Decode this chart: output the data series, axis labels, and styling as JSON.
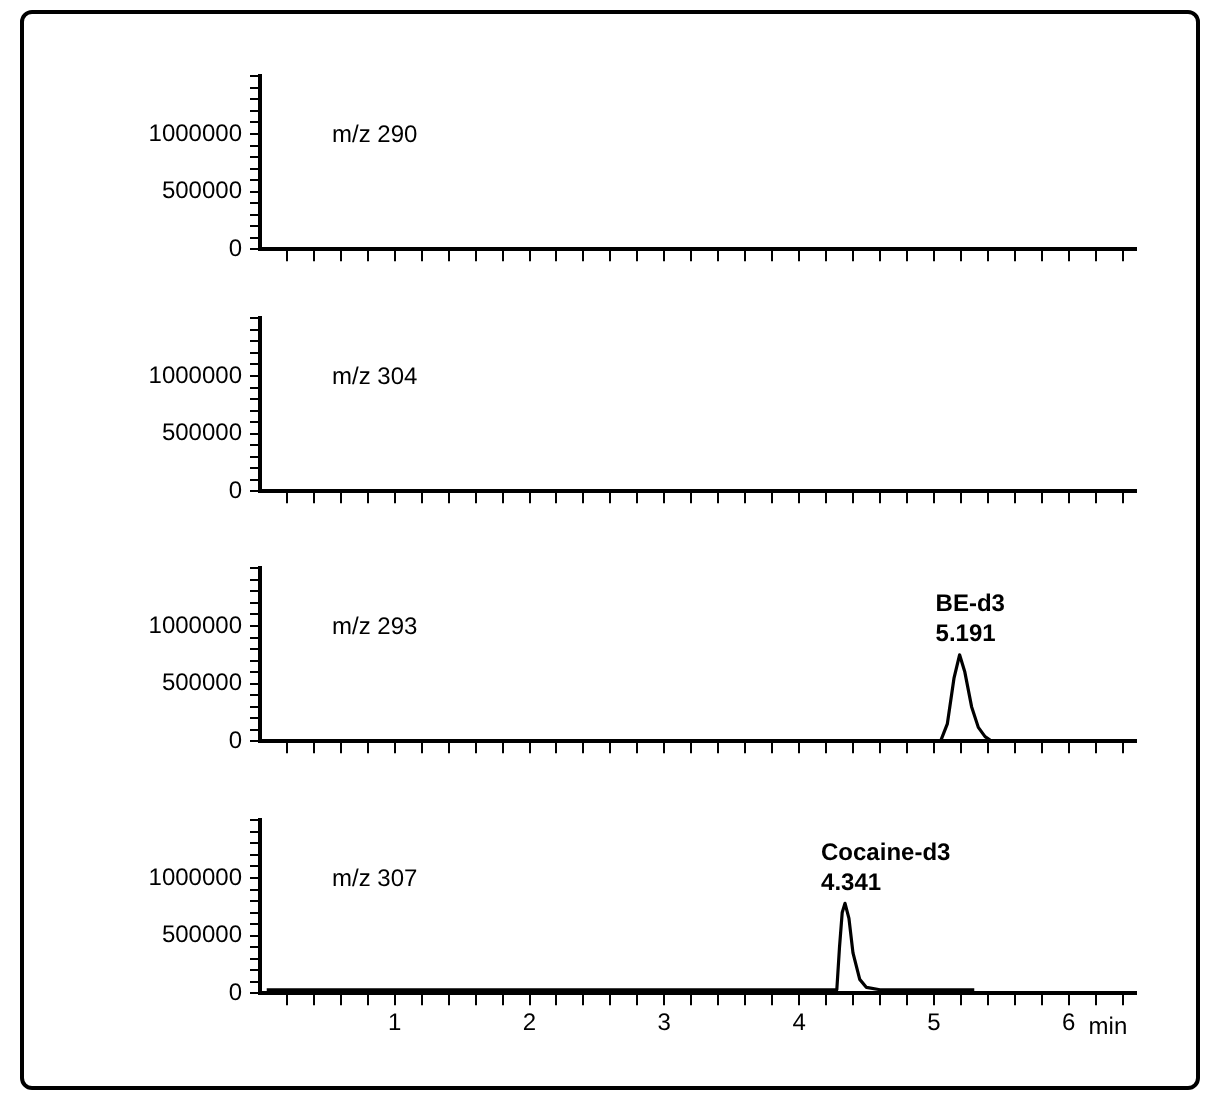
{
  "chart_data": [
    {
      "type": "line",
      "xlim": [
        0,
        6.5
      ],
      "ylim": [
        0,
        1500000
      ],
      "tick_labels": "y",
      "xticks": [
        {
          "value": 0.2,
          "label": null
        },
        {
          "value": 0.4,
          "label": null
        },
        {
          "value": 0.6,
          "label": null
        },
        {
          "value": 0.8,
          "label": null
        },
        {
          "value": 1,
          "label": null
        },
        {
          "value": 1.2,
          "label": null
        },
        {
          "value": 1.4,
          "label": null
        },
        {
          "value": 1.6,
          "label": null
        },
        {
          "value": 1.8,
          "label": null
        },
        {
          "value": 2,
          "label": null
        },
        {
          "value": 2.2,
          "label": null
        },
        {
          "value": 2.4,
          "label": null
        },
        {
          "value": 2.6,
          "label": null
        },
        {
          "value": 2.8,
          "label": null
        },
        {
          "value": 3,
          "label": null
        },
        {
          "value": 3.2,
          "label": null
        },
        {
          "value": 3.4,
          "label": null
        },
        {
          "value": 3.6,
          "label": null
        },
        {
          "value": 3.8,
          "label": null
        },
        {
          "value": 4,
          "label": null
        },
        {
          "value": 4.2,
          "label": null
        },
        {
          "value": 4.4,
          "label": null
        },
        {
          "value": 4.6,
          "label": null
        },
        {
          "value": 4.8,
          "label": null
        },
        {
          "value": 5,
          "label": null
        },
        {
          "value": 5.2,
          "label": null
        },
        {
          "value": 5.4,
          "label": null
        },
        {
          "value": 5.6,
          "label": null
        },
        {
          "value": 5.8,
          "label": null
        },
        {
          "value": 6,
          "label": null
        },
        {
          "value": 6.2,
          "label": null
        },
        {
          "value": 6.4,
          "label": null
        }
      ],
      "yticks": [
        0,
        {
          "value": 100000,
          "label": null
        },
        {
          "value": 200000,
          "label": null
        },
        {
          "value": 300000,
          "label": null
        },
        {
          "value": 400000,
          "label": null
        },
        500000,
        {
          "value": 600000,
          "label": null
        },
        {
          "value": 700000,
          "label": null
        },
        {
          "value": 800000,
          "label": null
        },
        {
          "value": 900000,
          "label": null
        },
        1000000,
        {
          "value": 1100000,
          "label": null
        },
        {
          "value": 1200000,
          "label": null
        },
        {
          "value": 1300000,
          "label": null
        },
        {
          "value": 1400000,
          "label": null
        },
        {
          "value": 1500000,
          "label": null
        }
      ],
      "annotations": [
        "m/z 290"
      ],
      "legend": false,
      "grid": false
    },
    {
      "type": "line",
      "xlim": [
        0,
        6.5
      ],
      "ylim": [
        0,
        1500000
      ],
      "tick_labels": "y",
      "xticks": [
        {
          "value": 0.2,
          "label": null
        },
        {
          "value": 0.4,
          "label": null
        },
        {
          "value": 0.6,
          "label": null
        },
        {
          "value": 0.8,
          "label": null
        },
        {
          "value": 1,
          "label": null
        },
        {
          "value": 1.2,
          "label": null
        },
        {
          "value": 1.4,
          "label": null
        },
        {
          "value": 1.6,
          "label": null
        },
        {
          "value": 1.8,
          "label": null
        },
        {
          "value": 2,
          "label": null
        },
        {
          "value": 2.2,
          "label": null
        },
        {
          "value": 2.4,
          "label": null
        },
        {
          "value": 2.6,
          "label": null
        },
        {
          "value": 2.8,
          "label": null
        },
        {
          "value": 3,
          "label": null
        },
        {
          "value": 3.2,
          "label": null
        },
        {
          "value": 3.4,
          "label": null
        },
        {
          "value": 3.6,
          "label": null
        },
        {
          "value": 3.8,
          "label": null
        },
        {
          "value": 4,
          "label": null
        },
        {
          "value": 4.2,
          "label": null
        },
        {
          "value": 4.4,
          "label": null
        },
        {
          "value": 4.6,
          "label": null
        },
        {
          "value": 4.8,
          "label": null
        },
        {
          "value": 5,
          "label": null
        },
        {
          "value": 5.2,
          "label": null
        },
        {
          "value": 5.4,
          "label": null
        },
        {
          "value": 5.6,
          "label": null
        },
        {
          "value": 5.8,
          "label": null
        },
        {
          "value": 6,
          "label": null
        },
        {
          "value": 6.2,
          "label": null
        },
        {
          "value": 6.4,
          "label": null
        }
      ],
      "yticks": [
        0,
        {
          "value": 100000,
          "label": null
        },
        {
          "value": 200000,
          "label": null
        },
        {
          "value": 300000,
          "label": null
        },
        {
          "value": 400000,
          "label": null
        },
        500000,
        {
          "value": 600000,
          "label": null
        },
        {
          "value": 700000,
          "label": null
        },
        {
          "value": 800000,
          "label": null
        },
        {
          "value": 900000,
          "label": null
        },
        1000000,
        {
          "value": 1100000,
          "label": null
        },
        {
          "value": 1200000,
          "label": null
        },
        {
          "value": 1300000,
          "label": null
        },
        {
          "value": 1400000,
          "label": null
        },
        {
          "value": 1500000,
          "label": null
        }
      ],
      "annotations": [
        "m/z 304"
      ],
      "legend": false,
      "grid": false
    },
    {
      "type": "line",
      "xlim": [
        0,
        6.5
      ],
      "ylim": [
        0,
        1500000
      ],
      "tick_labels": "y",
      "xticks": [
        {
          "value": 0.2,
          "label": null
        },
        {
          "value": 0.4,
          "label": null
        },
        {
          "value": 0.6,
          "label": null
        },
        {
          "value": 0.8,
          "label": null
        },
        {
          "value": 1,
          "label": null
        },
        {
          "value": 1.2,
          "label": null
        },
        {
          "value": 1.4,
          "label": null
        },
        {
          "value": 1.6,
          "label": null
        },
        {
          "value": 1.8,
          "label": null
        },
        {
          "value": 2,
          "label": null
        },
        {
          "value": 2.2,
          "label": null
        },
        {
          "value": 2.4,
          "label": null
        },
        {
          "value": 2.6,
          "label": null
        },
        {
          "value": 2.8,
          "label": null
        },
        {
          "value": 3,
          "label": null
        },
        {
          "value": 3.2,
          "label": null
        },
        {
          "value": 3.4,
          "label": null
        },
        {
          "value": 3.6,
          "label": null
        },
        {
          "value": 3.8,
          "label": null
        },
        {
          "value": 4,
          "label": null
        },
        {
          "value": 4.2,
          "label": null
        },
        {
          "value": 4.4,
          "label": null
        },
        {
          "value": 4.6,
          "label": null
        },
        {
          "value": 4.8,
          "label": null
        },
        {
          "value": 5,
          "label": null
        },
        {
          "value": 5.2,
          "label": null
        },
        {
          "value": 5.4,
          "label": null
        },
        {
          "value": 5.6,
          "label": null
        },
        {
          "value": 5.8,
          "label": null
        },
        {
          "value": 6,
          "label": null
        },
        {
          "value": 6.2,
          "label": null
        },
        {
          "value": 6.4,
          "label": null
        }
      ],
      "yticks": [
        0,
        {
          "value": 100000,
          "label": null
        },
        {
          "value": 200000,
          "label": null
        },
        {
          "value": 300000,
          "label": null
        },
        {
          "value": 400000,
          "label": null
        },
        500000,
        {
          "value": 600000,
          "label": null
        },
        {
          "value": 700000,
          "label": null
        },
        {
          "value": 800000,
          "label": null
        },
        {
          "value": 900000,
          "label": null
        },
        1000000,
        {
          "value": 1100000,
          "label": null
        },
        {
          "value": 1200000,
          "label": null
        },
        {
          "value": 1300000,
          "label": null
        },
        {
          "value": 1400000,
          "label": null
        },
        {
          "value": 1500000,
          "label": null
        }
      ],
      "series": [
        {
          "color": "#000000",
          "x": [
            0.05,
            5.05,
            5.1,
            5.15,
            5.191,
            5.23,
            5.28,
            5.33,
            5.38,
            5.43,
            6.5
          ],
          "values": [
            0,
            0,
            150000,
            550000,
            750000,
            600000,
            300000,
            120000,
            40000,
            0,
            0
          ]
        }
      ],
      "annotations": [
        "m/z 293",
        {
          "text": "BE-d3\n5.191",
          "x": 5.191,
          "y": 750000
        }
      ],
      "legend": false,
      "grid": false,
      "marker": "none"
    },
    {
      "type": "line",
      "xlim": [
        0,
        6.5
      ],
      "ylim": [
        0,
        1500000
      ],
      "xlabel": "min",
      "xticks": [
        {
          "value": 0.2,
          "label": null
        },
        {
          "value": 0.4,
          "label": null
        },
        {
          "value": 0.6,
          "label": null
        },
        {
          "value": 0.8,
          "label": null
        },
        1,
        {
          "value": 1.2,
          "label": null
        },
        {
          "value": 1.4,
          "label": null
        },
        {
          "value": 1.6,
          "label": null
        },
        {
          "value": 1.8,
          "label": null
        },
        2,
        {
          "value": 2.2,
          "label": null
        },
        {
          "value": 2.4,
          "label": null
        },
        {
          "value": 2.6,
          "label": null
        },
        {
          "value": 2.8,
          "label": null
        },
        3,
        {
          "value": 3.2,
          "label": null
        },
        {
          "value": 3.4,
          "label": null
        },
        {
          "value": 3.6,
          "label": null
        },
        {
          "value": 3.8,
          "label": null
        },
        4,
        {
          "value": 4.2,
          "label": null
        },
        {
          "value": 4.4,
          "label": null
        },
        {
          "value": 4.6,
          "label": null
        },
        {
          "value": 4.8,
          "label": null
        },
        5,
        {
          "value": 5.2,
          "label": null
        },
        {
          "value": 5.4,
          "label": null
        },
        {
          "value": 5.6,
          "label": null
        },
        {
          "value": 5.8,
          "label": null
        },
        6,
        {
          "value": 6.2,
          "label": null
        },
        {
          "value": 6.4,
          "label": null
        }
      ],
      "yticks": [
        0,
        {
          "value": 100000,
          "label": null
        },
        {
          "value": 200000,
          "label": null
        },
        {
          "value": 300000,
          "label": null
        },
        {
          "value": 400000,
          "label": null
        },
        500000,
        {
          "value": 600000,
          "label": null
        },
        {
          "value": 700000,
          "label": null
        },
        {
          "value": 800000,
          "label": null
        },
        {
          "value": 900000,
          "label": null
        },
        1000000,
        {
          "value": 1100000,
          "label": null
        },
        {
          "value": 1200000,
          "label": null
        },
        {
          "value": 1300000,
          "label": null
        },
        {
          "value": 1400000,
          "label": null
        },
        {
          "value": 1500000,
          "label": null
        }
      ],
      "series": [
        {
          "color": "#000000",
          "x": [
            0.05,
            4.28,
            4.3,
            4.32,
            4.341,
            4.37,
            4.4,
            4.45,
            4.5,
            4.6,
            5.3
          ],
          "values": [
            30000,
            30000,
            400000,
            700000,
            780000,
            650000,
            350000,
            120000,
            50000,
            30000,
            30000
          ]
        }
      ],
      "annotations": [
        "m/z 307",
        {
          "text": "Cocaine-d3\n4.341",
          "x": 4.341,
          "y": 780000
        }
      ],
      "legend": false,
      "grid": false,
      "marker": "none"
    }
  ]
}
